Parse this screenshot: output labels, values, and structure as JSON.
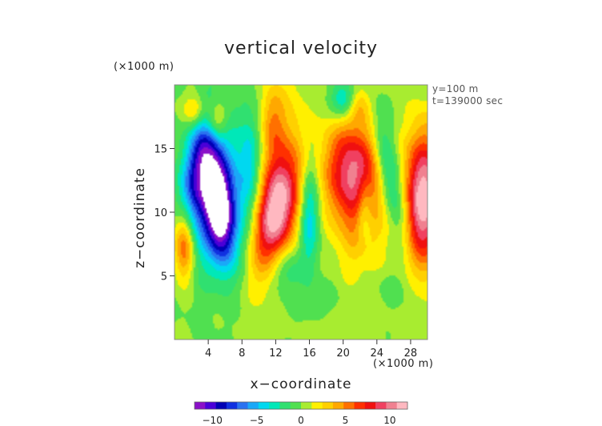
{
  "chart_data": {
    "type": "heatmap",
    "title": "vertical velocity",
    "xlabel": "x−coordinate",
    "ylabel": "z−coordinate",
    "x_unit": "(×1000 m)",
    "y_unit": "(×1000 m)",
    "annotations": [
      "y=100 m",
      "t=139000 sec"
    ],
    "xlim": [
      0,
      30
    ],
    "ylim": [
      0,
      20
    ],
    "x_ticks": [
      4,
      8,
      12,
      16,
      20,
      24,
      28
    ],
    "y_ticks": [
      5,
      10,
      15
    ],
    "colorbar": {
      "range": [
        -12,
        12
      ],
      "ticks": [
        -10,
        -5,
        0,
        5,
        10
      ],
      "tick_labels": [
        "−10",
        "−5",
        "0",
        "5",
        "10"
      ],
      "colors": [
        "#8a10c8",
        "#4a00d8",
        "#0000b4",
        "#1030e0",
        "#2a72f0",
        "#1aa8f8",
        "#00d8f0",
        "#00e8b8",
        "#30e070",
        "#50e050",
        "#a8ec30",
        "#fff000",
        "#ffd000",
        "#ffa800",
        "#ff7000",
        "#ff3000",
        "#f01010",
        "#f04060",
        "#f08090",
        "#ffb8c0"
      ]
    },
    "field_features": [
      {
        "x": 5.2,
        "z": 10.5,
        "sx": 1.2,
        "sz": 3.0,
        "amp": -12,
        "rot": -0.18
      },
      {
        "x": 6.0,
        "z": 11.5,
        "sx": 2.8,
        "sz": 4.0,
        "amp": -5,
        "rot": -0.1
      },
      {
        "x": 3.0,
        "z": 14.0,
        "sx": 1.3,
        "sz": 3.2,
        "amp": -6,
        "rot": 0.3
      },
      {
        "x": 2.5,
        "z": 9.0,
        "sx": 1.4,
        "sz": 3.0,
        "amp": -3,
        "rot": 0.0
      },
      {
        "x": 1.2,
        "z": 7.5,
        "sx": 0.9,
        "sz": 2.0,
        "amp": 8,
        "rot": 0.0
      },
      {
        "x": 12.2,
        "z": 10.0,
        "sx": 1.6,
        "sz": 3.2,
        "amp": 10,
        "rot": 0.35
      },
      {
        "x": 11.8,
        "z": 12.5,
        "sx": 1.9,
        "sz": 5.5,
        "amp": 4,
        "rot": 0.25
      },
      {
        "x": 11.5,
        "z": 17.5,
        "sx": 1.0,
        "sz": 2.0,
        "amp": 3,
        "rot": 0.0
      },
      {
        "x": 9.0,
        "z": 14.0,
        "sx": 0.9,
        "sz": 3.0,
        "amp": -3,
        "rot": 0.0
      },
      {
        "x": 16.0,
        "z": 10.0,
        "sx": 0.8,
        "sz": 3.0,
        "amp": -5,
        "rot": 0.0
      },
      {
        "x": 21.0,
        "z": 13.5,
        "sx": 2.5,
        "sz": 2.8,
        "amp": 8,
        "rot": 0.0
      },
      {
        "x": 22.0,
        "z": 10.0,
        "sx": 2.2,
        "sz": 3.5,
        "amp": 4,
        "rot": 0.0
      },
      {
        "x": 22.5,
        "z": 10.3,
        "sx": 0.7,
        "sz": 1.8,
        "amp": -4,
        "rot": 0.0
      },
      {
        "x": 25.5,
        "z": 13.0,
        "sx": 1.0,
        "sz": 3.5,
        "amp": -5,
        "rot": -0.3
      },
      {
        "x": 29.5,
        "z": 11.0,
        "sx": 1.6,
        "sz": 3.8,
        "amp": 12,
        "rot": 0.0
      },
      {
        "x": 20.0,
        "z": 18.8,
        "sx": 1.0,
        "sz": 1.0,
        "amp": -5,
        "rot": 0.0
      },
      {
        "x": 2.5,
        "z": 18.0,
        "sx": 1.0,
        "sz": 0.9,
        "amp": 4,
        "rot": 0.0
      },
      {
        "x": 5.0,
        "z": 17.2,
        "sx": 0.9,
        "sz": 1.1,
        "amp": 5,
        "rot": 0.0
      },
      {
        "x": 13.0,
        "z": 5.5,
        "sx": 1.3,
        "sz": 1.3,
        "amp": -3,
        "rot": 0.0
      },
      {
        "x": 20.0,
        "z": 1.0,
        "sx": 4.0,
        "sz": 1.5,
        "amp": 0.7,
        "rot": 0.0
      },
      {
        "x": 17.0,
        "z": 3.0,
        "sx": 2.0,
        "sz": 1.0,
        "amp": -1.0,
        "rot": 0.0
      },
      {
        "x": 26.0,
        "z": 4.0,
        "sx": 2.0,
        "sz": 1.0,
        "amp": -0.9,
        "rot": 0.0
      },
      {
        "x": 22.0,
        "z": 18.5,
        "sx": 1.0,
        "sz": 1.0,
        "amp": 2.5,
        "rot": 0.0
      }
    ]
  }
}
